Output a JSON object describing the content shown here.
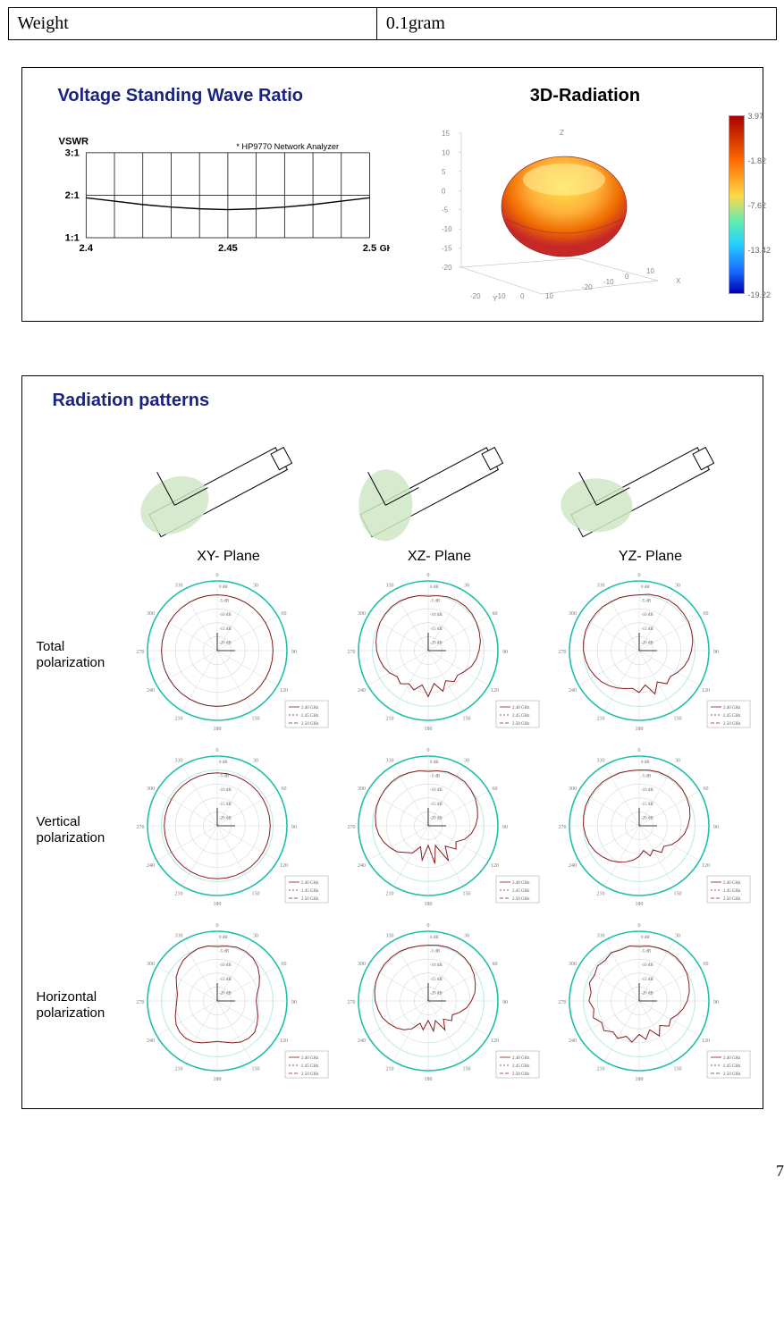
{
  "spec_table": {
    "label": "Weight",
    "value": "0.1gram"
  },
  "figure1": {
    "vswr": {
      "title": "Voltage Standing Wave Ratio",
      "ylabel": "VSWR",
      "yticks": [
        "3:1",
        "2:1",
        "1:1"
      ],
      "xticks": [
        "2.4",
        "2.45",
        "2.5"
      ],
      "xunit": "GHz",
      "analyzer_note": "* HP9770 Network Analyzer",
      "grid_color": "#000000",
      "line_color": "#000000",
      "curve_points": [
        [
          0.0,
          0.53
        ],
        [
          0.1,
          0.57
        ],
        [
          0.2,
          0.61
        ],
        [
          0.3,
          0.64
        ],
        [
          0.4,
          0.66
        ],
        [
          0.5,
          0.67
        ],
        [
          0.6,
          0.66
        ],
        [
          0.7,
          0.64
        ],
        [
          0.8,
          0.61
        ],
        [
          0.9,
          0.57
        ],
        [
          1.0,
          0.53
        ]
      ]
    },
    "d3": {
      "title": "3D-Radiation",
      "axis_ticks_z": [
        "15",
        "10",
        "5",
        "0",
        "-5",
        "-10",
        "-15",
        "-20"
      ],
      "axis_ticks_xy": [
        "-20",
        "-10",
        "0",
        "10"
      ],
      "colorbar_values": [
        "3.97",
        "-1.82",
        "-7.62",
        "-13.42",
        "-19.22"
      ],
      "colorbar_stops": [
        "#a80000",
        "#ff6a00",
        "#ffd84a",
        "#5eedb3",
        "#28d0ff",
        "#1868ff",
        "#0000b0"
      ],
      "sphere_gradient": [
        "#c62828",
        "#ef6c00",
        "#ffca28"
      ]
    }
  },
  "figure2": {
    "title": "Radiation patterns",
    "columns": [
      "XY- Plane",
      "XZ- Plane",
      "YZ- Plane"
    ],
    "rows": [
      "Total\npolarization",
      "Vertical\npolarization",
      "Horizontal\npolarization"
    ],
    "polar": {
      "outer_ring_color": "#20bfa9",
      "inner_ring_color": "#bfeee8",
      "grid_color": "#cfd8dc",
      "trace_color": "#8b1a1a",
      "angle_ticks": [
        0,
        30,
        60,
        90,
        120,
        150,
        180,
        210,
        240,
        270,
        300,
        330
      ],
      "radial_labels": [
        "0 dB",
        "-5 dB",
        "-10 dB",
        "-15 dB",
        "-20 dB"
      ],
      "legend_freqs": [
        "2.40 GHz",
        "2.45 GHz",
        "2.50 GHz"
      ]
    },
    "diagram_fan_color": "#cfe8c4",
    "traces": {
      "total": {
        "XY": [
          0.8,
          0.8,
          0.8,
          0.8,
          0.8,
          0.8,
          0.8,
          0.8,
          0.8,
          0.8,
          0.8,
          0.8,
          0.8,
          0.8,
          0.8,
          0.8,
          0.8,
          0.8,
          0.8,
          0.8,
          0.8,
          0.8,
          0.8,
          0.8,
          0.8,
          0.8,
          0.8,
          0.8,
          0.8,
          0.8,
          0.8,
          0.8,
          0.8,
          0.8,
          0.8,
          0.8
        ],
        "XZ": [
          0.78,
          0.8,
          0.82,
          0.83,
          0.83,
          0.82,
          0.8,
          0.78,
          0.76,
          0.73,
          0.7,
          0.66,
          0.6,
          0.55,
          0.58,
          0.5,
          0.62,
          0.48,
          0.66,
          0.5,
          0.6,
          0.55,
          0.62,
          0.58,
          0.64,
          0.68,
          0.71,
          0.74,
          0.76,
          0.78,
          0.8,
          0.81,
          0.82,
          0.82,
          0.81,
          0.8
        ],
        "YZ": [
          0.8,
          0.82,
          0.83,
          0.84,
          0.84,
          0.83,
          0.82,
          0.8,
          0.78,
          0.75,
          0.72,
          0.68,
          0.63,
          0.58,
          0.62,
          0.52,
          0.66,
          0.5,
          0.6,
          0.55,
          0.58,
          0.62,
          0.66,
          0.7,
          0.73,
          0.76,
          0.78,
          0.8,
          0.81,
          0.82,
          0.82,
          0.82,
          0.82,
          0.81,
          0.81,
          0.8
        ]
      },
      "vertical": {
        "XY": [
          0.76,
          0.76,
          0.76,
          0.76,
          0.76,
          0.76,
          0.76,
          0.76,
          0.76,
          0.76,
          0.76,
          0.76,
          0.76,
          0.76,
          0.76,
          0.76,
          0.76,
          0.76,
          0.76,
          0.76,
          0.76,
          0.76,
          0.76,
          0.76,
          0.76,
          0.76,
          0.76,
          0.76,
          0.76,
          0.76,
          0.76,
          0.76,
          0.76,
          0.76,
          0.76,
          0.76
        ],
        "XZ": [
          0.78,
          0.8,
          0.82,
          0.82,
          0.82,
          0.8,
          0.78,
          0.75,
          0.72,
          0.68,
          0.63,
          0.56,
          0.46,
          0.52,
          0.38,
          0.58,
          0.3,
          0.55,
          0.28,
          0.5,
          0.32,
          0.45,
          0.5,
          0.58,
          0.63,
          0.68,
          0.72,
          0.75,
          0.77,
          0.79,
          0.8,
          0.81,
          0.82,
          0.82,
          0.81,
          0.8
        ],
        "YZ": [
          0.8,
          0.81,
          0.82,
          0.82,
          0.82,
          0.81,
          0.79,
          0.77,
          0.74,
          0.7,
          0.66,
          0.6,
          0.54,
          0.46,
          0.5,
          0.4,
          0.46,
          0.36,
          0.44,
          0.5,
          0.55,
          0.6,
          0.65,
          0.69,
          0.73,
          0.76,
          0.78,
          0.8,
          0.81,
          0.82,
          0.82,
          0.82,
          0.82,
          0.81,
          0.81,
          0.8
        ]
      },
      "horizontal": {
        "XY": [
          0.78,
          0.8,
          0.82,
          0.82,
          0.8,
          0.76,
          0.7,
          0.64,
          0.58,
          0.56,
          0.58,
          0.62,
          0.66,
          0.7,
          0.7,
          0.68,
          0.64,
          0.6,
          0.58,
          0.6,
          0.64,
          0.68,
          0.7,
          0.7,
          0.68,
          0.64,
          0.6,
          0.58,
          0.58,
          0.62,
          0.68,
          0.72,
          0.76,
          0.78,
          0.8,
          0.8
        ],
        "XZ": [
          0.8,
          0.81,
          0.82,
          0.82,
          0.81,
          0.79,
          0.76,
          0.72,
          0.68,
          0.62,
          0.56,
          0.48,
          0.4,
          0.44,
          0.34,
          0.48,
          0.3,
          0.44,
          0.28,
          0.42,
          0.34,
          0.46,
          0.54,
          0.6,
          0.65,
          0.7,
          0.73,
          0.76,
          0.78,
          0.8,
          0.81,
          0.82,
          0.82,
          0.82,
          0.81,
          0.8
        ],
        "YZ": [
          0.78,
          0.8,
          0.81,
          0.82,
          0.82,
          0.81,
          0.79,
          0.76,
          0.73,
          0.69,
          0.64,
          0.58,
          0.52,
          0.56,
          0.46,
          0.58,
          0.44,
          0.56,
          0.48,
          0.6,
          0.54,
          0.62,
          0.58,
          0.66,
          0.62,
          0.7,
          0.66,
          0.72,
          0.7,
          0.76,
          0.74,
          0.78,
          0.76,
          0.8,
          0.78,
          0.8
        ]
      }
    }
  },
  "page_number": "7"
}
